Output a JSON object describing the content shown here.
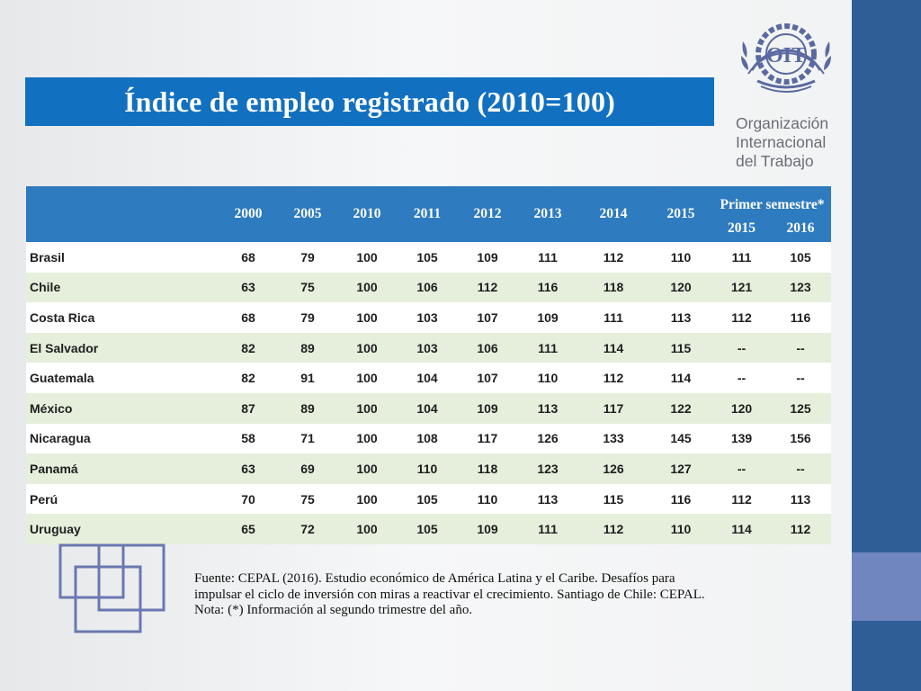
{
  "title": "Índice de empleo registrado (2010=100)",
  "org": {
    "logo_text": "OIT",
    "lines": [
      "Organización",
      "Internacional",
      "del Trabajo"
    ]
  },
  "table": {
    "semester_header": "Primer semestre*",
    "year_headers": [
      "2000",
      "2005",
      "2010",
      "2011",
      "2012",
      "2013",
      "2014",
      "2015"
    ],
    "semester_years": [
      "2015",
      "2016"
    ],
    "rows": [
      {
        "country": "Brasil",
        "values": [
          "68",
          "79",
          "100",
          "105",
          "109",
          "111",
          "112",
          "110",
          "111",
          "105"
        ]
      },
      {
        "country": "Chile",
        "values": [
          "63",
          "75",
          "100",
          "106",
          "112",
          "116",
          "118",
          "120",
          "121",
          "123"
        ]
      },
      {
        "country": "Costa Rica",
        "values": [
          "68",
          "79",
          "100",
          "103",
          "107",
          "109",
          "111",
          "113",
          "112",
          "116"
        ]
      },
      {
        "country": "El Salvador",
        "values": [
          "82",
          "89",
          "100",
          "103",
          "106",
          "111",
          "114",
          "115",
          "--",
          "--"
        ]
      },
      {
        "country": "Guatemala",
        "values": [
          "82",
          "91",
          "100",
          "104",
          "107",
          "110",
          "112",
          "114",
          "--",
          "--"
        ]
      },
      {
        "country": "México",
        "values": [
          "87",
          "89",
          "100",
          "104",
          "109",
          "113",
          "117",
          "122",
          "120",
          "125"
        ]
      },
      {
        "country": "Nicaragua",
        "values": [
          "58",
          "71",
          "100",
          "108",
          "117",
          "126",
          "133",
          "145",
          "139",
          "156"
        ]
      },
      {
        "country": "Panamá",
        "values": [
          "63",
          "69",
          "100",
          "110",
          "118",
          "123",
          "126",
          "127",
          "--",
          "--"
        ]
      },
      {
        "country": "Perú",
        "values": [
          "70",
          "75",
          "100",
          "105",
          "110",
          "113",
          "115",
          "116",
          "112",
          "113"
        ]
      },
      {
        "country": "Uruguay",
        "values": [
          "65",
          "72",
          "100",
          "105",
          "109",
          "111",
          "112",
          "110",
          "114",
          "112"
        ]
      }
    ]
  },
  "source": {
    "line1": "Fuente: CEPAL (2016). Estudio económico de América Latina y el Caribe. Desafíos para",
    "line2": "impulsar el ciclo de inversión con miras a reactivar el crecimiento. Santiago de Chile: CEPAL.",
    "line3": "Nota: (*) Información al segundo trimestre del año."
  },
  "colors": {
    "title_bg": "#1270c0",
    "header_bg": "#2e7bbf",
    "row_alt": "#e5efdc",
    "side_bar": "#2f5e97",
    "side_accent": "#6f86be"
  }
}
